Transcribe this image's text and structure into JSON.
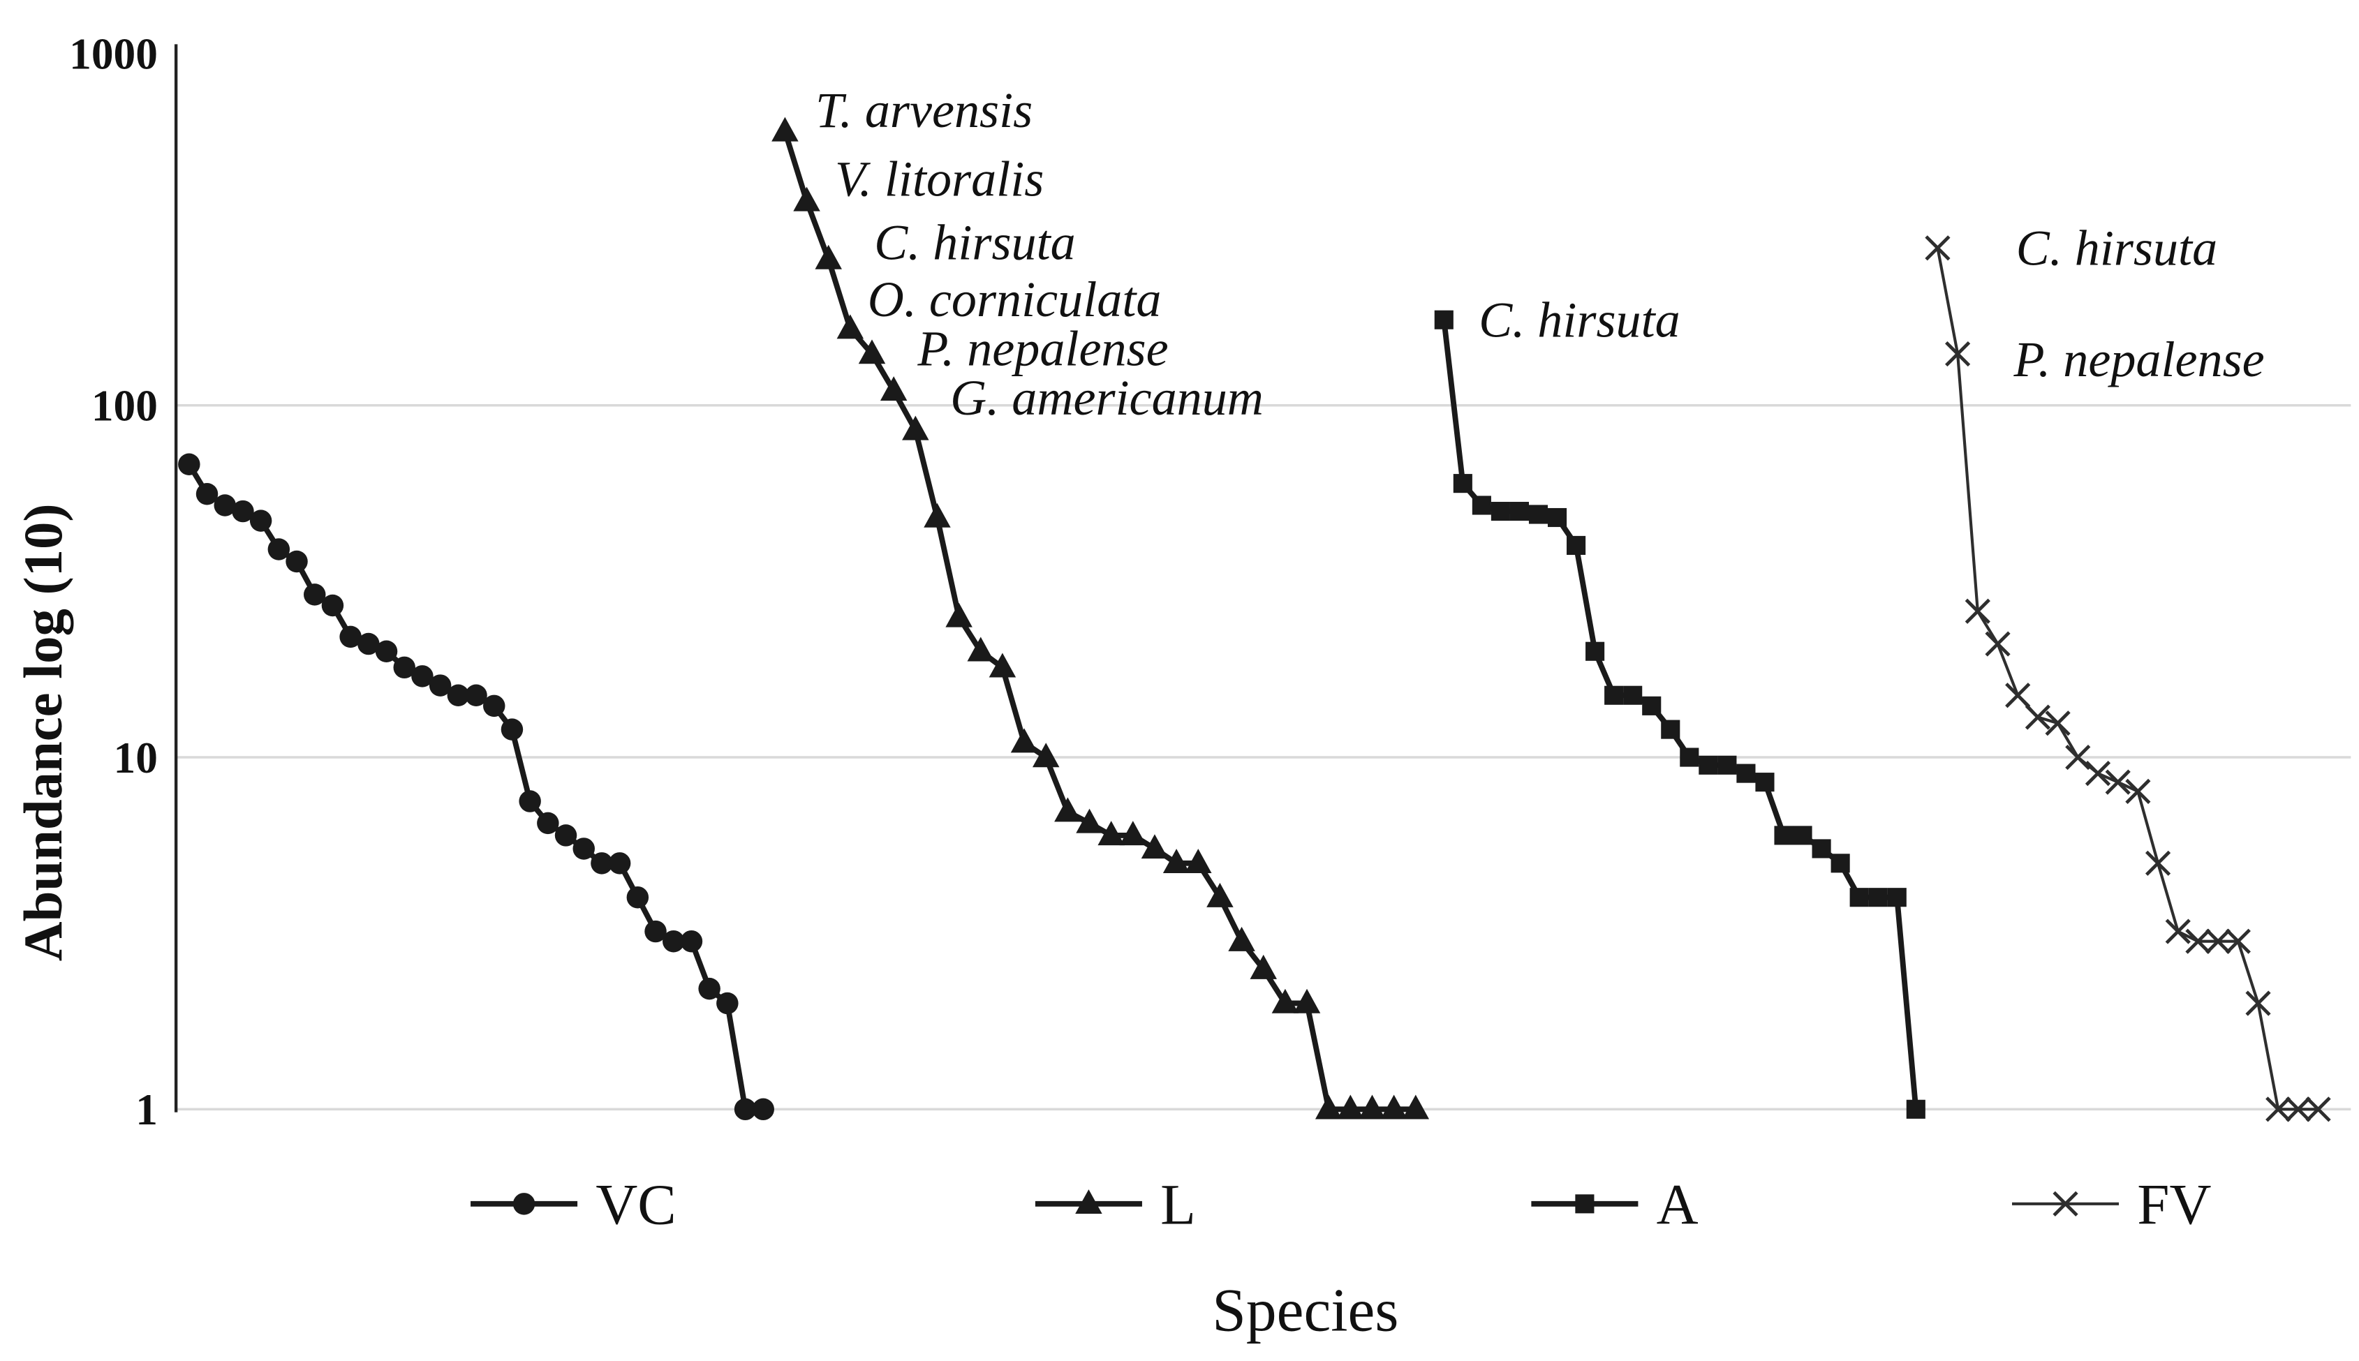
{
  "chart_data": {
    "type": "line",
    "title": "",
    "xlabel": "Species",
    "ylabel": "Abundance log  (10)",
    "y_scale": "log10",
    "ylim": [
      1,
      1000
    ],
    "y_ticks": [
      1000,
      100,
      10,
      1
    ],
    "grid_values": [
      100,
      10,
      1
    ],
    "legend_position": "bottom",
    "series": [
      {
        "name": "VC",
        "marker": "circle",
        "x_range_pct": [
          0.6,
          27.0
        ],
        "values": [
          68,
          56,
          52,
          50,
          47,
          39,
          36,
          29,
          27,
          22,
          21,
          20,
          18,
          17,
          16,
          15,
          15,
          14,
          12,
          7.5,
          6.5,
          6,
          5.5,
          5,
          5,
          4,
          3.2,
          3,
          3,
          2.2,
          2,
          1,
          1
        ]
      },
      {
        "name": "L",
        "marker": "triangle",
        "x_range_pct": [
          28.0,
          57.0
        ],
        "values": [
          600,
          380,
          260,
          165,
          140,
          110,
          85,
          48,
          25,
          20,
          18,
          11,
          10,
          7,
          6.5,
          6,
          6,
          5.5,
          5,
          5,
          4,
          3,
          2.5,
          2,
          2,
          1,
          1,
          1,
          1,
          1
        ]
      },
      {
        "name": "A",
        "marker": "square",
        "x_range_pct": [
          58.3,
          80.0
        ],
        "values": [
          175,
          60,
          52,
          50,
          50,
          49,
          48,
          40,
          20,
          15,
          15,
          14,
          12,
          10,
          9.5,
          9.5,
          9,
          8.5,
          6,
          6,
          5.5,
          5,
          4,
          4,
          4,
          1
        ]
      },
      {
        "name": "FV",
        "marker": "x",
        "x_range_pct": [
          81.0,
          98.5
        ],
        "values": [
          280,
          140,
          26,
          21,
          15,
          13,
          12.5,
          10,
          9,
          8.5,
          8,
          5,
          3.2,
          3,
          3,
          3,
          2,
          1,
          1,
          1
        ]
      }
    ],
    "annotations": [
      {
        "text": "T. arvensis",
        "x_pct": 29.4,
        "value": 690
      },
      {
        "text": "V. litoralis",
        "x_pct": 30.3,
        "value": 440
      },
      {
        "text": "C. hirsuta",
        "x_pct": 32.1,
        "value": 290
      },
      {
        "text": "O. corniculata",
        "x_pct": 31.8,
        "value": 200
      },
      {
        "text": "P. nepalense",
        "x_pct": 34.1,
        "value": 145
      },
      {
        "text": "G. americanum",
        "x_pct": 35.6,
        "value": 105
      },
      {
        "text": "C. hirsuta",
        "x_pct": 59.9,
        "value": 175
      },
      {
        "text": "C. hirsuta",
        "x_pct": 84.6,
        "value": 280
      },
      {
        "text": "P. nepalense",
        "x_pct": 84.5,
        "value": 135
      }
    ],
    "legend": [
      {
        "label": "VC",
        "marker": "circle"
      },
      {
        "label": "L",
        "marker": "triangle"
      },
      {
        "label": "A",
        "marker": "square"
      },
      {
        "label": "FV",
        "marker": "x"
      }
    ],
    "colors": {
      "line": "#1a1a1a",
      "fv_line": "#2e2e2e",
      "grid": "#d9d9d9",
      "axis": "#222222"
    }
  }
}
